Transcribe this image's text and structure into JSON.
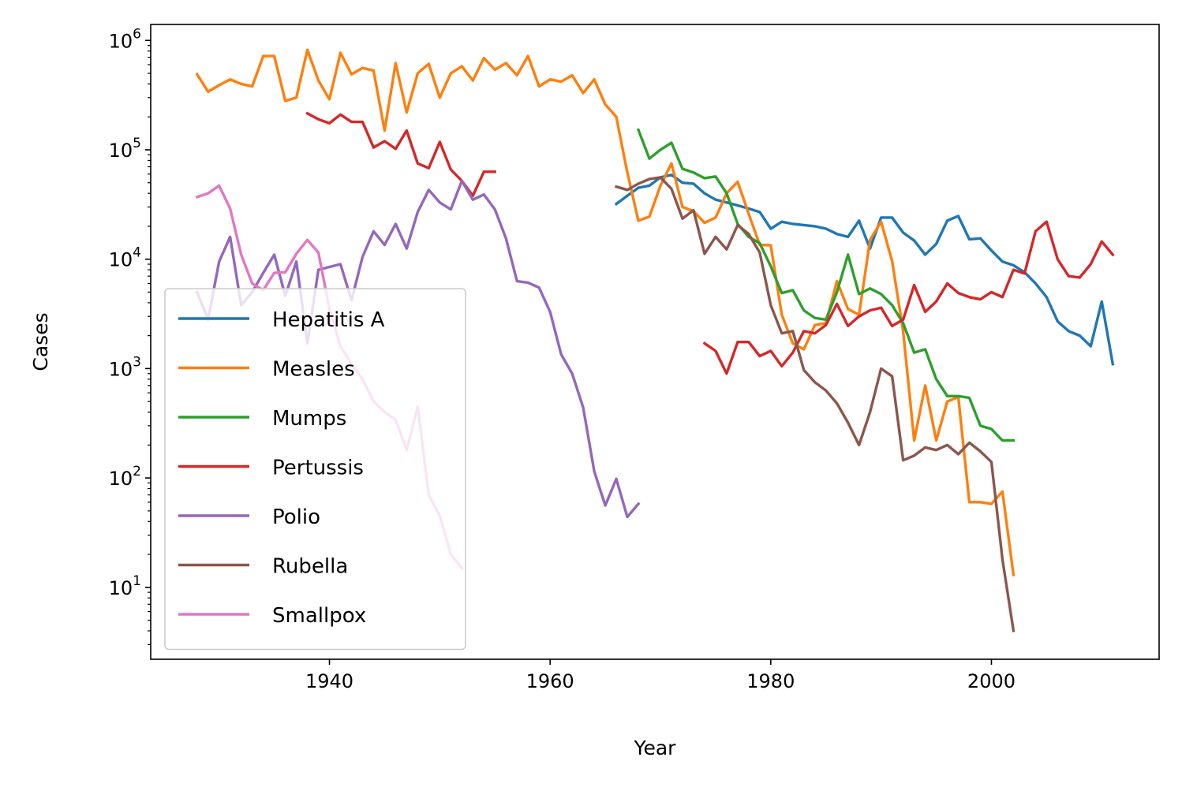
{
  "chart_data": {
    "type": "line",
    "xlabel": "Year",
    "ylabel": "Cases",
    "xlim": [
      1923.8,
      2015.2
    ],
    "ylim": [
      2.2,
      1400000
    ],
    "yscale": "log",
    "xticks": [
      1940,
      1960,
      1980,
      2000
    ],
    "xtick_labels": [
      "1940",
      "1960",
      "1980",
      "2000"
    ],
    "yticks": [
      10,
      100,
      1000,
      10000,
      100000,
      1000000
    ],
    "ytick_labels": [
      {
        "base": "10",
        "exp": "1"
      },
      {
        "base": "10",
        "exp": "2"
      },
      {
        "base": "10",
        "exp": "3"
      },
      {
        "base": "10",
        "exp": "4"
      },
      {
        "base": "10",
        "exp": "5"
      },
      {
        "base": "10",
        "exp": "6"
      }
    ],
    "grid": false,
    "legend": {
      "position": "lower-left"
    },
    "series": [
      {
        "name": "Hepatitis A",
        "color": "#1f77b4",
        "x": [
          1966,
          1967,
          1968,
          1969,
          1970,
          1971,
          1972,
          1973,
          1974,
          1975,
          1976,
          1977,
          1978,
          1979,
          1980,
          1981,
          1982,
          1983,
          1984,
          1985,
          1986,
          1987,
          1988,
          1989,
          1990,
          1991,
          1992,
          1993,
          1994,
          1995,
          1996,
          1997,
          1998,
          1999,
          2000,
          2001,
          2002,
          2003,
          2004,
          2005,
          2006,
          2007,
          2008,
          2009,
          2010,
          2011
        ],
        "values": [
          32000,
          38000,
          45000,
          47000,
          56000,
          59000,
          50000,
          49000,
          40000,
          35000,
          33000,
          31000,
          29000,
          27000,
          19000,
          22000,
          21000,
          20500,
          20000,
          19000,
          17000,
          16000,
          22500,
          12500,
          24000,
          24000,
          17500,
          14800,
          11000,
          13800,
          22500,
          24800,
          15200,
          15500,
          12000,
          9500,
          8800,
          7600,
          6000,
          4500,
          2700,
          2200,
          2000,
          1600,
          4100,
          1100
        ]
      },
      {
        "name": "Measles",
        "color": "#ff7f0e",
        "x": [
          1928,
          1929,
          1930,
          1931,
          1932,
          1933,
          1934,
          1935,
          1936,
          1937,
          1938,
          1939,
          1940,
          1941,
          1942,
          1943,
          1944,
          1945,
          1946,
          1947,
          1948,
          1949,
          1950,
          1951,
          1952,
          1953,
          1954,
          1955,
          1956,
          1957,
          1958,
          1959,
          1960,
          1961,
          1962,
          1963,
          1964,
          1965,
          1966,
          1967,
          1968,
          1969,
          1970,
          1971,
          1972,
          1973,
          1974,
          1975,
          1976,
          1977,
          1978,
          1979,
          1980,
          1981,
          1982,
          1983,
          1984,
          1985,
          1986,
          1987,
          1988,
          1989,
          1990,
          1991,
          1992,
          1993,
          1994,
          1995,
          1996,
          1997,
          1998,
          1999,
          2000,
          2001,
          2002
        ],
        "values": [
          490000,
          340000,
          390000,
          440000,
          400000,
          380000,
          720000,
          720000,
          280000,
          300000,
          820000,
          430000,
          290000,
          770000,
          490000,
          560000,
          530000,
          150000,
          620000,
          220000,
          500000,
          610000,
          300000,
          500000,
          580000,
          430000,
          690000,
          540000,
          620000,
          480000,
          720000,
          380000,
          440000,
          420000,
          480000,
          330000,
          440000,
          260000,
          200000,
          62000,
          22500,
          24500,
          47000,
          75000,
          30000,
          27500,
          21500,
          24000,
          40000,
          51000,
          26000,
          13500,
          13400,
          3100,
          1700,
          1500,
          2500,
          2600,
          6300,
          3500,
          3100,
          15000,
          22000,
          9600,
          2200,
          220,
          700,
          220,
          500,
          550,
          60,
          60,
          58,
          75,
          13
        ]
      },
      {
        "name": "Mumps",
        "color": "#2ca02c",
        "x": [
          1968,
          1969,
          1970,
          1971,
          1972,
          1973,
          1974,
          1975,
          1976,
          1977,
          1978,
          1979,
          1980,
          1981,
          1982,
          1983,
          1984,
          1985,
          1986,
          1987,
          1988,
          1989,
          1990,
          1991,
          1992,
          1993,
          1994,
          1995,
          1996,
          1997,
          1998,
          1999,
          2000,
          2001,
          2002
        ],
        "values": [
          152000,
          83000,
          100000,
          116000,
          67000,
          62000,
          55000,
          57000,
          40000,
          21000,
          16000,
          14000,
          8600,
          4900,
          5200,
          3400,
          2900,
          2800,
          5000,
          11000,
          4800,
          5400,
          4800,
          3800,
          2600,
          1400,
          1500,
          800,
          560,
          560,
          540,
          300,
          280,
          220,
          220
        ]
      },
      {
        "name": "Pertussis",
        "color": "#d62728",
        "x": [
          1938,
          1939,
          1940,
          1941,
          1942,
          1943,
          1944,
          1945,
          1946,
          1947,
          1948,
          1949,
          1950,
          1951,
          1952,
          1953,
          1954,
          1955
        ],
        "values": [
          215000,
          190000,
          175000,
          210000,
          180000,
          180000,
          105000,
          120000,
          102000,
          150000,
          75000,
          68000,
          118000,
          66000,
          52000,
          38000,
          63000,
          63000
        ]
      },
      {
        "name": "Pertussis",
        "color": "#d62728",
        "legend": false,
        "x": [
          1974,
          1975,
          1976,
          1977,
          1978,
          1979,
          1980,
          1981,
          1982,
          1983,
          1984,
          1985,
          1986,
          1987,
          1988,
          1989,
          1990,
          1991,
          1992,
          1993,
          1994,
          1995,
          1996,
          1997,
          1998,
          1999,
          2000,
          2001,
          2002,
          2003,
          2004,
          2005,
          2006,
          2007,
          2008,
          2009,
          2010,
          2011
        ],
        "values": [
          1700,
          1450,
          900,
          1750,
          1750,
          1300,
          1450,
          1050,
          1400,
          2200,
          2100,
          2500,
          3900,
          2450,
          3000,
          3400,
          3600,
          2450,
          2800,
          5800,
          3300,
          4100,
          6000,
          4900,
          4500,
          4300,
          5000,
          4500,
          8000,
          7400,
          18000,
          22000,
          10000,
          7000,
          6800,
          9000,
          14500,
          11000
        ]
      },
      {
        "name": "Polio",
        "color": "#9467bd",
        "x": [
          1928,
          1929,
          1930,
          1931,
          1932,
          1933,
          1934,
          1935,
          1936,
          1937,
          1938,
          1939,
          1940,
          1941,
          1942,
          1943,
          1944,
          1945,
          1946,
          1947,
          1948,
          1949,
          1950,
          1951,
          1952,
          1953,
          1954,
          1955,
          1956,
          1957,
          1958,
          1959,
          1960,
          1961,
          1962,
          1963,
          1964,
          1965,
          1966,
          1967,
          1968
        ],
        "values": [
          5000,
          2800,
          9500,
          16000,
          3800,
          5000,
          7500,
          11000,
          4600,
          9500,
          1700,
          8000,
          8500,
          9000,
          4200,
          10500,
          18000,
          13500,
          21000,
          12500,
          27000,
          43000,
          33000,
          28500,
          52000,
          35000,
          39000,
          28500,
          15500,
          6300,
          6100,
          5500,
          3300,
          1350,
          900,
          440,
          115,
          56,
          98,
          44,
          58
        ]
      },
      {
        "name": "Rubella",
        "color": "#8c564b",
        "x": [
          1966,
          1967,
          1968,
          1969,
          1970,
          1971,
          1972,
          1973,
          1974,
          1975,
          1976,
          1977,
          1978,
          1979,
          1980,
          1981,
          1982,
          1983,
          1984,
          1985,
          1986,
          1987,
          1988,
          1989,
          1990,
          1991,
          1992,
          1993,
          1994,
          1995,
          1996,
          1997,
          1998,
          1999,
          2000,
          2001,
          2002
        ],
        "values": [
          46000,
          43000,
          49000,
          54000,
          56000,
          44000,
          23500,
          28000,
          11200,
          16000,
          12300,
          20500,
          17000,
          11500,
          3800,
          2100,
          2200,
          970,
          750,
          630,
          480,
          320,
          200,
          400,
          1000,
          850,
          145,
          160,
          190,
          180,
          200,
          165,
          210,
          175,
          140,
          18,
          4
        ]
      },
      {
        "name": "Smallpox",
        "color": "#e377c2",
        "x": [
          1928,
          1929,
          1930,
          1931,
          1932,
          1933,
          1934,
          1935,
          1936,
          1937,
          1938,
          1939,
          1940,
          1941,
          1942,
          1943,
          1944,
          1945,
          1946,
          1947,
          1948,
          1949,
          1950,
          1951,
          1952
        ],
        "values": [
          37000,
          40000,
          47000,
          29000,
          11000,
          6000,
          5200,
          7500,
          7600,
          11200,
          15000,
          11500,
          3500,
          1600,
          1100,
          800,
          500,
          400,
          340,
          180,
          450,
          70,
          45,
          20,
          15
        ]
      }
    ]
  }
}
